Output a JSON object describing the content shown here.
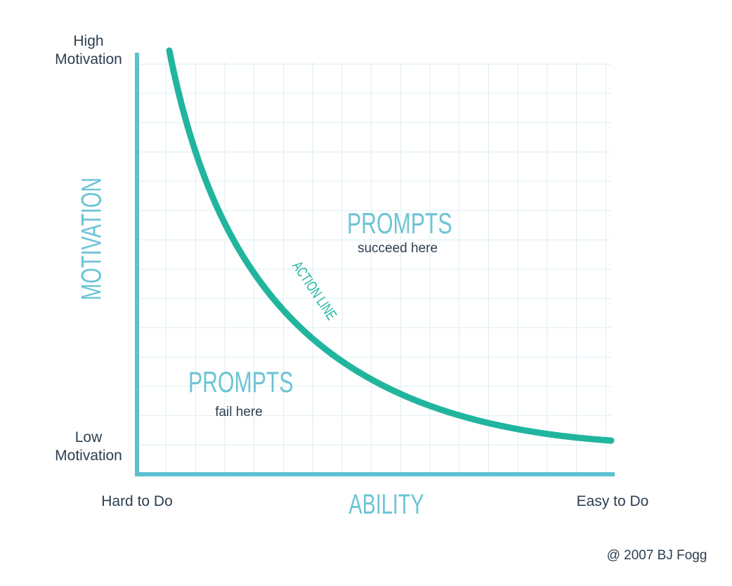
{
  "diagram": {
    "y_axis": {
      "label": "MOTIVATION",
      "top": "High Motivation",
      "bottom": "Low Motivation"
    },
    "x_axis": {
      "label": "ABILITY",
      "left": "Hard to Do",
      "right": "Easy to Do"
    },
    "regions": [
      {
        "title": "PROMPTS",
        "caption": "succeed here"
      },
      {
        "title": "PROMPTS",
        "caption": "fail here"
      }
    ],
    "curve_label": "ACTION LINE",
    "credit": "@ 2007 BJ Fogg"
  }
}
